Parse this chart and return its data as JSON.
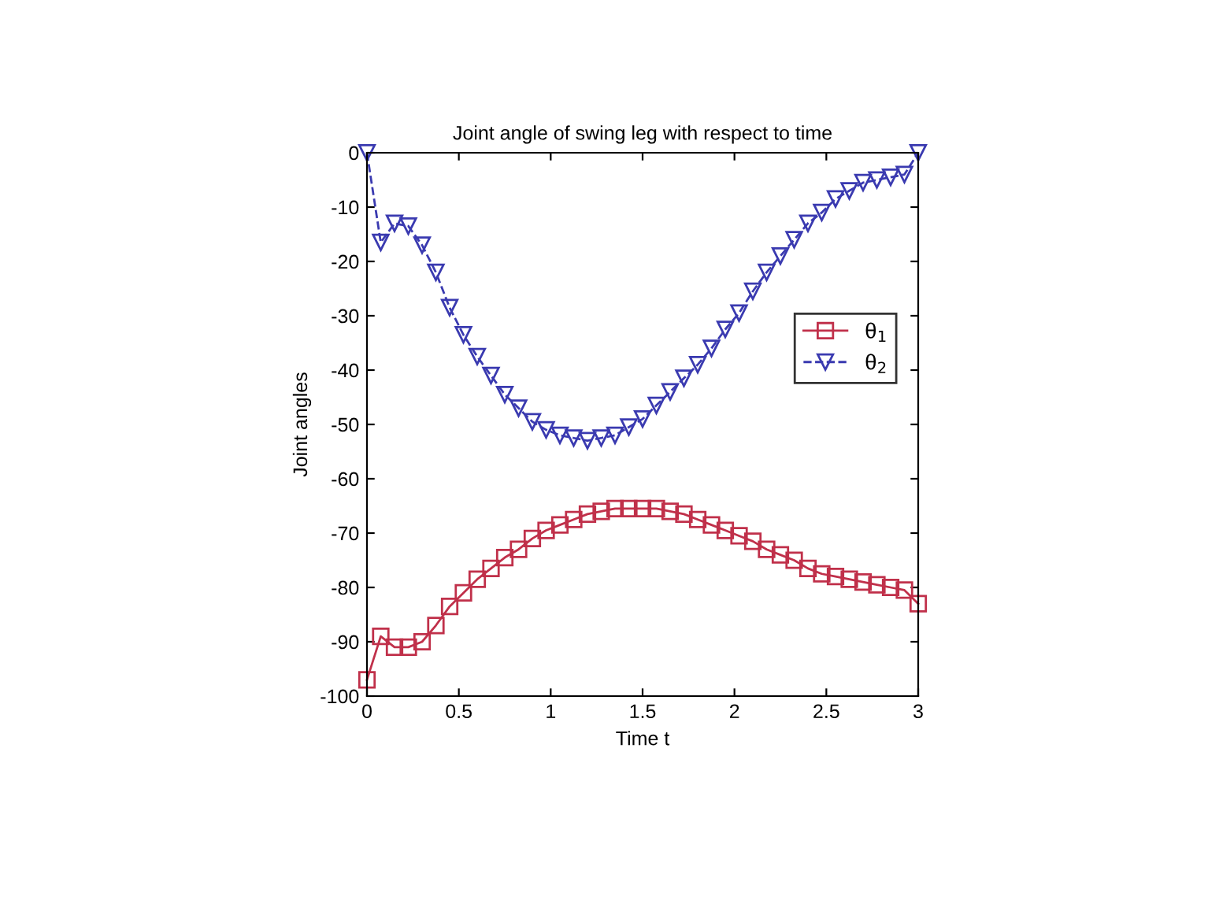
{
  "chart_data": {
    "type": "line",
    "title": "Joint angle of swing leg with respect to time",
    "xlabel": "Time t",
    "ylabel": "Joint angles",
    "x": [
      0,
      0.075,
      0.15,
      0.225,
      0.3,
      0.375,
      0.45,
      0.525,
      0.6,
      0.675,
      0.75,
      0.825,
      0.9,
      0.975,
      1.05,
      1.125,
      1.2,
      1.275,
      1.35,
      1.425,
      1.5,
      1.575,
      1.65,
      1.725,
      1.8,
      1.875,
      1.95,
      2.025,
      2.1,
      2.175,
      2.25,
      2.325,
      2.4,
      2.475,
      2.55,
      2.625,
      2.7,
      2.775,
      2.85,
      2.925,
      3
    ],
    "series": [
      {
        "name": "θ$_{1}$",
        "color": "#c0304a",
        "marker": "square",
        "line_style": "solid",
        "values": [
          -97,
          -89,
          -91,
          -91,
          -90,
          -87,
          -83.5,
          -81,
          -78.5,
          -76.5,
          -74.5,
          -73,
          -71,
          -69.5,
          -68.5,
          -67.5,
          -66.5,
          -66,
          -65.5,
          -65.5,
          -65.5,
          -65.5,
          -66,
          -66.5,
          -67.5,
          -68.5,
          -69.5,
          -70.5,
          -71.5,
          -73,
          -74,
          -75,
          -76.5,
          -77.5,
          -78,
          -78.5,
          -79,
          -79.5,
          -80,
          -80.5,
          -83
        ]
      },
      {
        "name": "θ$_{2}$",
        "color": "#3a3ab0",
        "marker": "triangle",
        "line_style": "dashed",
        "values": [
          0,
          -16.5,
          -13,
          -13.5,
          -17,
          -22,
          -28.5,
          -33.5,
          -37.5,
          -41,
          -44.5,
          -47,
          -49.5,
          -51,
          -52,
          -52.5,
          -53,
          -52.5,
          -52,
          -50.5,
          -49,
          -46.5,
          -44,
          -41.5,
          -39,
          -36,
          -32.5,
          -29.5,
          -25.5,
          -22,
          -19,
          -16,
          -13,
          -11,
          -8.5,
          -7,
          -5.5,
          -5,
          -4.5,
          -4,
          0
        ]
      }
    ],
    "xlim": [
      0,
      3
    ],
    "ylim": [
      -100,
      0
    ],
    "xticks": [
      0,
      0.5,
      1,
      1.5,
      2,
      2.5,
      3
    ],
    "yticks": [
      -100,
      -90,
      -80,
      -70,
      -60,
      -50,
      -40,
      -30,
      -20,
      -10,
      0
    ],
    "grid": false,
    "legend": "right"
  }
}
